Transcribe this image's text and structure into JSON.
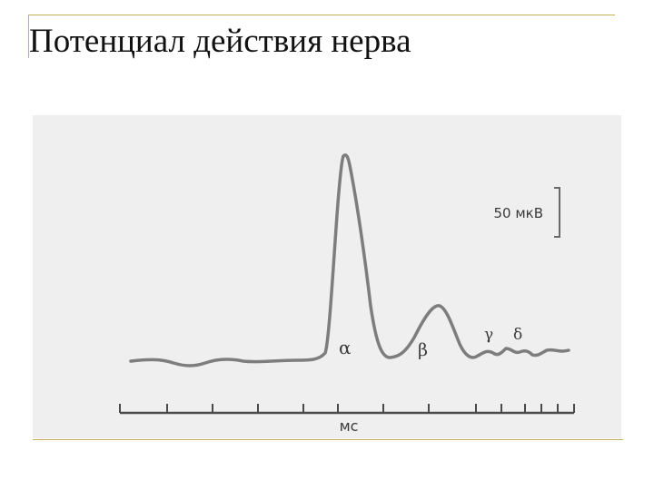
{
  "slide": {
    "title": "Потенциал действия нерва"
  },
  "figure": {
    "scale_bar_label": "50 мкВ",
    "axis_label": "мс",
    "peak_labels": [
      "α",
      "β",
      "γ",
      "δ"
    ],
    "trace_color": "#7d7d7d",
    "background_color": "#efefef",
    "accent_color": "#c8b35a"
  }
}
